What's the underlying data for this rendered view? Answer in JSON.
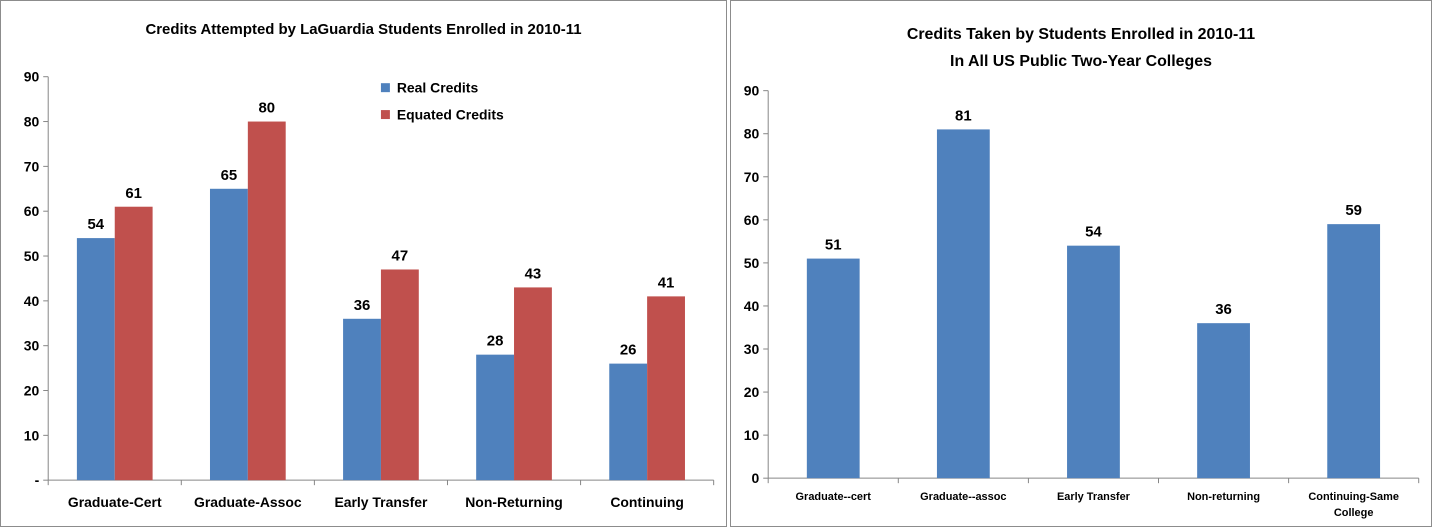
{
  "chart_data": [
    {
      "type": "bar",
      "title": "Credits Attempted by LaGuardia Students Enrolled in 2010-11",
      "categories": [
        "Graduate-Cert",
        "Graduate-Assoc",
        "Early Transfer",
        "Non-Returning",
        "Continuing"
      ],
      "series": [
        {
          "name": "Real Credits",
          "color": "#4f81bd",
          "values": [
            54,
            65,
            36,
            28,
            26
          ]
        },
        {
          "name": "Equated Credits",
          "color": "#c0504d",
          "values": [
            61,
            80,
            47,
            43,
            41
          ]
        }
      ],
      "ylim": [
        0,
        90
      ],
      "yticks": [
        "-",
        "10",
        "20",
        "30",
        "40",
        "50",
        "60",
        "70",
        "80",
        "90"
      ],
      "grid": false,
      "legend_position": "top-right"
    },
    {
      "type": "bar",
      "title": [
        "Credits Taken by Students Enrolled in 2010-11",
        "In All US Public Two-Year Colleges"
      ],
      "categories": [
        "Graduate--cert",
        "Graduate--assoc",
        "Early Transfer",
        "Non-returning",
        [
          "Continuing-Same",
          "College"
        ]
      ],
      "series": [
        {
          "color": "#4f81bd",
          "values": [
            51,
            81,
            54,
            36,
            59
          ]
        }
      ],
      "ylim": [
        0,
        90
      ],
      "yticks": [
        "0",
        "10",
        "20",
        "30",
        "40",
        "50",
        "60",
        "70",
        "80",
        "90"
      ],
      "grid": false
    }
  ]
}
